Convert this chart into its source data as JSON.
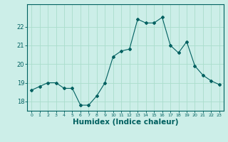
{
  "x": [
    0,
    1,
    2,
    3,
    4,
    5,
    6,
    7,
    8,
    9,
    10,
    11,
    12,
    13,
    14,
    15,
    16,
    17,
    18,
    19,
    20,
    21,
    22,
    23
  ],
  "y": [
    18.6,
    18.8,
    19.0,
    19.0,
    18.7,
    18.7,
    17.8,
    17.8,
    18.3,
    19.0,
    20.4,
    20.7,
    20.8,
    22.4,
    22.2,
    22.2,
    22.5,
    21.0,
    20.6,
    21.2,
    19.9,
    19.4,
    19.1,
    18.9
  ],
  "line_color": "#006060",
  "marker": "D",
  "marker_size": 2.0,
  "bg_color": "#cceee8",
  "grid_color": "#aaddcc",
  "tick_color": "#006060",
  "label_color": "#006060",
  "xlabel": "Humidex (Indice chaleur)",
  "xlabel_fontsize": 7.5,
  "yticks": [
    18,
    19,
    20,
    21,
    22
  ],
  "ylim": [
    17.5,
    23.2
  ],
  "xlim": [
    -0.5,
    23.5
  ],
  "xtick_labels": [
    "0",
    "1",
    "2",
    "3",
    "4",
    "5",
    "6",
    "7",
    "8",
    "9",
    "10",
    "11",
    "12",
    "13",
    "14",
    "15",
    "16",
    "17",
    "18",
    "19",
    "20",
    "21",
    "22",
    "23"
  ]
}
